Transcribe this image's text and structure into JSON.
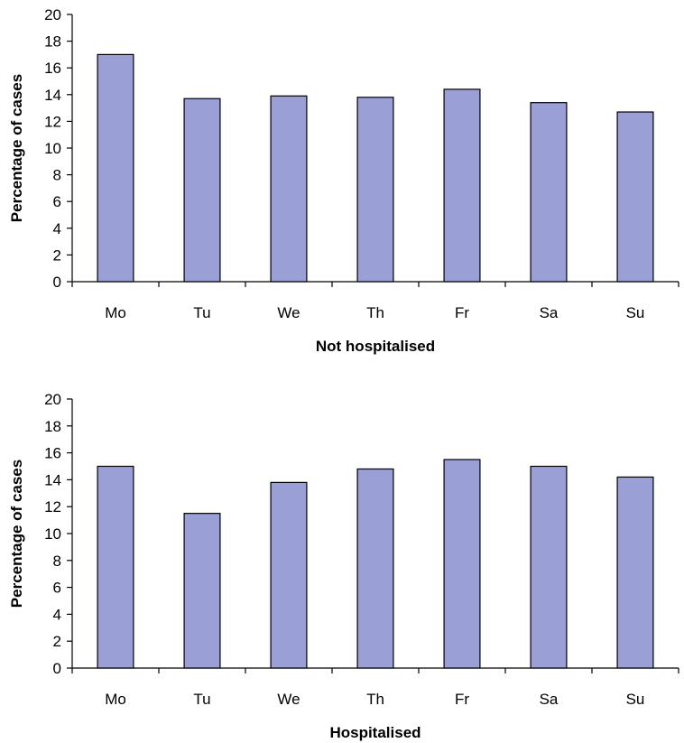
{
  "chart_data": [
    {
      "type": "bar",
      "categories": [
        "Mo",
        "Tu",
        "We",
        "Th",
        "Fr",
        "Sa",
        "Su"
      ],
      "values": [
        17.0,
        13.7,
        13.9,
        13.8,
        14.4,
        13.4,
        12.7
      ],
      "xlabel": "Not hospitalised",
      "ylabel": "Percentage of cases",
      "ylim": [
        0,
        20
      ],
      "yticks": [
        0,
        2,
        4,
        6,
        8,
        10,
        12,
        14,
        16,
        18,
        20
      ],
      "grid": false,
      "bar_color": "#9a9fd6"
    },
    {
      "type": "bar",
      "categories": [
        "Mo",
        "Tu",
        "We",
        "Th",
        "Fr",
        "Sa",
        "Su"
      ],
      "values": [
        15.0,
        11.5,
        13.8,
        14.8,
        15.5,
        15.0,
        14.2
      ],
      "xlabel": "Hospitalised",
      "ylabel": "Percentage of cases",
      "ylim": [
        0,
        20
      ],
      "yticks": [
        0,
        2,
        4,
        6,
        8,
        10,
        12,
        14,
        16,
        18,
        20
      ],
      "grid": false,
      "bar_color": "#9a9fd6"
    }
  ]
}
